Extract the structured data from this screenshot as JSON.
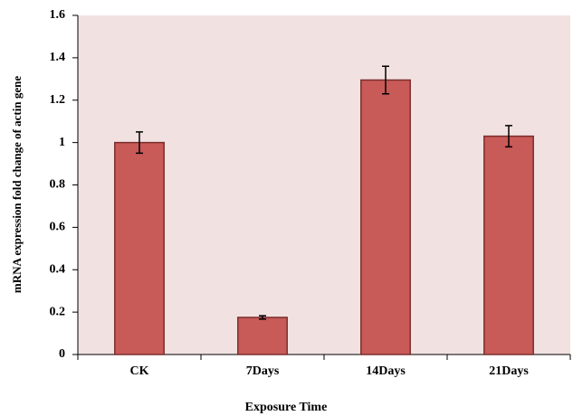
{
  "chart_data": {
    "type": "bar",
    "x_label": "Exposure Time",
    "y_label": "mRNA expression fold change of actin gene",
    "categories": [
      "CK",
      "7Days",
      "14Days",
      "21Days"
    ],
    "values": [
      1.0,
      0.175,
      1.295,
      1.03
    ],
    "errors": [
      0.05,
      0.008,
      0.065,
      0.05
    ],
    "color": "#c85a58",
    "ylim": [
      0,
      1.6
    ],
    "yticks": [
      0,
      0.2,
      0.4,
      0.6,
      0.8,
      1,
      1.2,
      1.4,
      1.6
    ]
  }
}
